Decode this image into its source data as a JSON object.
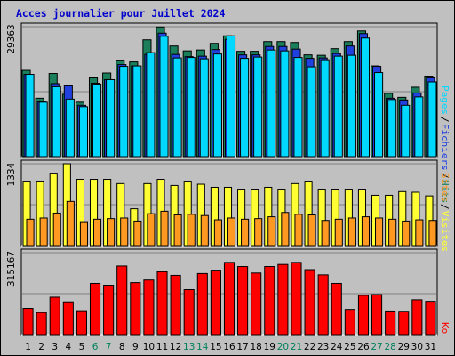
{
  "title": "Acces journalier pour Juillet 2024",
  "colors": {
    "hits": "#1a7f5a",
    "files": "#2040e0",
    "pages": "#00d8ff",
    "visits": "#ffff33",
    "sites": "#ff9922",
    "kb": "#ff0000",
    "weekend_day": "#00805c",
    "weekday": "#000000",
    "title": "#0000cc"
  },
  "chart_data": [
    {
      "type": "bar",
      "title": "Acces journalier pour Juillet 2024",
      "panel": "hits",
      "y_max_label": "29363",
      "ylim": [
        0,
        29363
      ],
      "right_labels": [
        "Pages",
        "/",
        "Fichiers",
        "/",
        "Hits"
      ],
      "categories": [
        "1",
        "2",
        "3",
        "4",
        "5",
        "6",
        "7",
        "8",
        "9",
        "10",
        "11",
        "12",
        "13",
        "14",
        "15",
        "16",
        "17",
        "18",
        "19",
        "20",
        "21",
        "22",
        "23",
        "24",
        "25",
        "26",
        "27",
        "28",
        "29",
        "30",
        "31"
      ],
      "series": [
        {
          "name": "Hits",
          "values": [
            19500,
            13200,
            18800,
            14100,
            12300,
            17800,
            18900,
            21800,
            21400,
            26400,
            29300,
            25000,
            23900,
            24100,
            25600,
            27300,
            23800,
            23800,
            26000,
            26000,
            25800,
            23000,
            22900,
            24400,
            26000,
            28400,
            20500,
            14300,
            13400,
            15700,
            18200
          ]
        },
        {
          "name": "Fichiers",
          "values": [
            18600,
            12400,
            16500,
            16000,
            11600,
            16600,
            17400,
            20800,
            20500,
            23100,
            27900,
            23100,
            22600,
            22700,
            24200,
            26500,
            23000,
            23000,
            24900,
            24900,
            24300,
            22200,
            22300,
            23300,
            25000,
            27800,
            20400,
            13200,
            12800,
            14400,
            17800
          ]
        },
        {
          "name": "Pages",
          "values": [
            18600,
            12300,
            15800,
            13000,
            11300,
            16400,
            17400,
            20400,
            20500,
            23500,
            27200,
            22300,
            22400,
            22100,
            23200,
            27300,
            22200,
            22500,
            24100,
            23900,
            22400,
            20300,
            21900,
            22700,
            22900,
            26800,
            19000,
            12900,
            11600,
            13500,
            16900
          ]
        }
      ]
    },
    {
      "type": "bar",
      "panel": "visits",
      "y_max_label": "1334",
      "ylim": [
        0,
        1334
      ],
      "right_labels": [
        "Sites",
        "/",
        "Visites"
      ],
      "categories": [
        "1",
        "2",
        "3",
        "4",
        "5",
        "6",
        "7",
        "8",
        "9",
        "10",
        "11",
        "12",
        "13",
        "14",
        "15",
        "16",
        "17",
        "18",
        "19",
        "20",
        "21",
        "22",
        "23",
        "24",
        "25",
        "26",
        "27",
        "28",
        "29",
        "30",
        "31"
      ],
      "series": [
        {
          "name": "Visites",
          "values": [
            1050,
            1050,
            1180,
            1334,
            1080,
            1080,
            1080,
            1010,
            600,
            1010,
            1080,
            980,
            1050,
            1000,
            950,
            950,
            920,
            920,
            950,
            920,
            1010,
            1050,
            920,
            920,
            920,
            920,
            820,
            820,
            880,
            870,
            810
          ]
        },
        {
          "name": "Sites",
          "values": [
            430,
            450,
            530,
            720,
            390,
            430,
            440,
            450,
            400,
            520,
            560,
            500,
            510,
            490,
            420,
            450,
            430,
            440,
            470,
            540,
            510,
            500,
            410,
            430,
            450,
            470,
            450,
            430,
            400,
            420,
            410
          ]
        }
      ]
    },
    {
      "type": "bar",
      "panel": "kb",
      "y_max_label": "315167",
      "ylim": [
        0,
        315167
      ],
      "right_labels": [
        "Ko"
      ],
      "categories": [
        "1",
        "2",
        "3",
        "4",
        "5",
        "6",
        "7",
        "8",
        "9",
        "10",
        "11",
        "12",
        "13",
        "14",
        "15",
        "16",
        "17",
        "18",
        "19",
        "20",
        "21",
        "22",
        "23",
        "24",
        "25",
        "26",
        "27",
        "28",
        "29",
        "30",
        "31"
      ],
      "series": [
        {
          "name": "Ko",
          "values": [
            101000,
            85000,
            144000,
            126000,
            92000,
            197000,
            190000,
            264000,
            200000,
            210000,
            242000,
            228000,
            173000,
            235000,
            248000,
            278000,
            262000,
            237000,
            262000,
            270000,
            278000,
            250000,
            230000,
            197000,
            97000,
            151000,
            154000,
            91000,
            90000,
            134000,
            128000
          ]
        }
      ]
    }
  ],
  "day_labels": [
    "1",
    "2",
    "3",
    "4",
    "5",
    "6",
    "7",
    "8",
    "9",
    "10",
    "11",
    "12",
    "13",
    "14",
    "15",
    "16",
    "17",
    "18",
    "19",
    "20",
    "21",
    "22",
    "23",
    "24",
    "25",
    "26",
    "27",
    "28",
    "29",
    "30",
    "31"
  ],
  "weekend_days": [
    6,
    7,
    13,
    14,
    20,
    21,
    27,
    28
  ]
}
